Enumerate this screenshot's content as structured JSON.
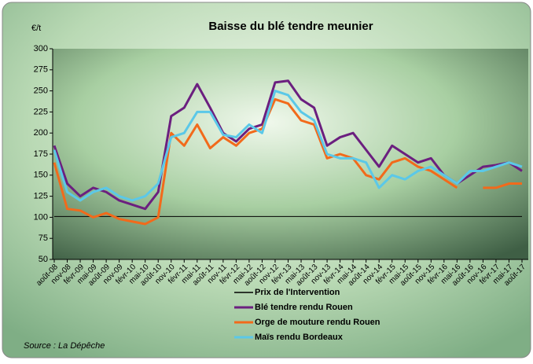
{
  "chart_data": {
    "type": "line",
    "title": "Baisse du blé tendre meunier",
    "y_label": "€/t",
    "source": "Source : La Dépêche",
    "categories": [
      "août-08",
      "nov-08",
      "févr-09",
      "mai-09",
      "août-09",
      "nov-09",
      "févr-10",
      "mai-10",
      "août-10",
      "nov-10",
      "févr-11",
      "mai-11",
      "août-11",
      "nov-11",
      "févr-12",
      "mai-12",
      "août-12",
      "nov-12",
      "févr-13",
      "mai-13",
      "août-13",
      "nov-13",
      "févr-14",
      "mai-14",
      "août-14",
      "nov-14",
      "févr-15",
      "mai-15",
      "août-15",
      "nov-15",
      "févr-16",
      "mai-16",
      "août-16",
      "nov-16",
      "févr-17",
      "mai-17",
      "août-17"
    ],
    "series": [
      {
        "name": "Prix de l'Intervention",
        "color": "#000000",
        "values": [
          101,
          101,
          101,
          101,
          101,
          101,
          101,
          101,
          101,
          101,
          101,
          101,
          101,
          101,
          101,
          101,
          101,
          101,
          101,
          101,
          101,
          101,
          101,
          101,
          101,
          101,
          101,
          101,
          101,
          101,
          101,
          101,
          101,
          101,
          101,
          101,
          101
        ]
      },
      {
        "name": "Blé tendre rendu Rouen",
        "color": "#6b1f7f",
        "values": [
          185,
          140,
          125,
          135,
          130,
          120,
          115,
          110,
          130,
          220,
          230,
          258,
          230,
          200,
          190,
          205,
          210,
          260,
          262,
          240,
          230,
          185,
          195,
          200,
          180,
          160,
          185,
          175,
          165,
          170,
          150,
          140,
          150,
          160,
          162,
          165,
          155
        ]
      },
      {
        "name": "Orge de mouture rendu Rouen",
        "color": "#f26a1b",
        "values": [
          165,
          110,
          108,
          100,
          105,
          98,
          95,
          92,
          100,
          200,
          185,
          210,
          182,
          195,
          185,
          200,
          205,
          240,
          235,
          215,
          210,
          170,
          175,
          170,
          150,
          145,
          165,
          170,
          160,
          155,
          145,
          135,
          null,
          135,
          135,
          140,
          140
        ]
      },
      {
        "name": "Maïs rendu Bordeaux",
        "color": "#5bc8e8",
        "values": [
          180,
          130,
          120,
          130,
          135,
          125,
          120,
          125,
          140,
          195,
          200,
          225,
          225,
          198,
          195,
          210,
          200,
          250,
          245,
          225,
          215,
          175,
          170,
          170,
          165,
          135,
          150,
          145,
          155,
          160,
          150,
          140,
          155,
          155,
          160,
          165,
          160
        ]
      }
    ],
    "ylim": [
      50,
      300
    ],
    "yticks": [
      50,
      75,
      100,
      125,
      150,
      175,
      200,
      225,
      250,
      275,
      300
    ]
  }
}
